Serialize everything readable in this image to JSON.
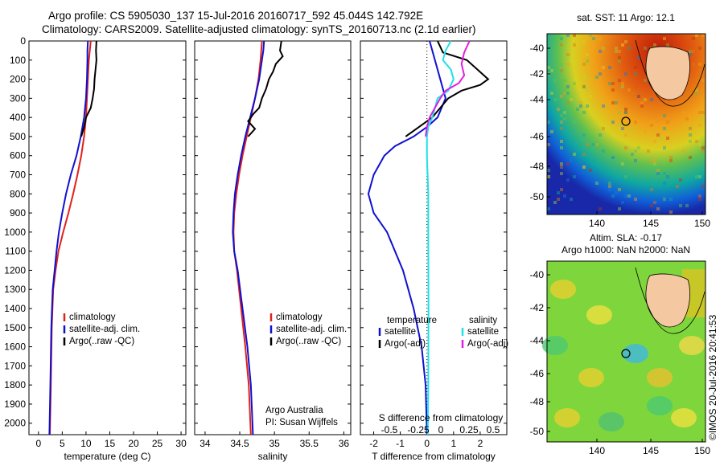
{
  "header": {
    "line1": "Argo profile: CS 5905030_137 15-Jul-2016 20160717_592 45.044S 142.792E",
    "line2": "Climatology: CARS2009. Satellite-adjusted climatology: synTS_20160713.nc (2.1d earlier)"
  },
  "depth_axis": {
    "ticks": [
      0,
      100,
      200,
      300,
      400,
      500,
      600,
      700,
      800,
      900,
      1000,
      1100,
      1200,
      1300,
      1400,
      1500,
      1600,
      1700,
      1800,
      1900,
      2000
    ],
    "range": [
      0,
      2060
    ]
  },
  "colors": {
    "climatology": "#e0201c",
    "satellite": "#1010d0",
    "argo": "#000000",
    "salinity_satellite": "#20e0e8",
    "salinity_argo": "#e020e0"
  },
  "chart_data": [
    {
      "type": "line",
      "xlabel": "temperature (deg C)",
      "xticks": [
        0,
        5,
        10,
        15,
        20,
        25,
        30
      ],
      "xlim": [
        -2,
        31
      ],
      "legend": [
        "climatology",
        "satellite-adj. clim.",
        "Argo(..raw -QC)"
      ],
      "series": [
        {
          "name": "climatology",
          "color": "#e0201c",
          "x": [
            11.0,
            10.8,
            10.6,
            10.4,
            10.2,
            10.0,
            9.6,
            9.0,
            8.2,
            7.3,
            6.3,
            5.2,
            4.2,
            3.6,
            3.1,
            2.8,
            2.6,
            2.4
          ],
          "y": [
            0,
            50,
            100,
            200,
            300,
            400,
            500,
            600,
            700,
            800,
            900,
            1000,
            1100,
            1200,
            1300,
            1500,
            1800,
            2060
          ]
        },
        {
          "name": "satellite-adj. clim.",
          "color": "#1010d0",
          "x": [
            10.4,
            10.3,
            10.3,
            10.2,
            10.0,
            9.6,
            8.9,
            8.0,
            6.8,
            5.8,
            5.0,
            4.3,
            3.8,
            3.4,
            3.0,
            2.7,
            2.5,
            2.3
          ],
          "y": [
            0,
            50,
            100,
            200,
            300,
            400,
            500,
            600,
            700,
            800,
            900,
            1000,
            1100,
            1200,
            1300,
            1500,
            1800,
            2060
          ]
        },
        {
          "name": "Argo(..raw -QC)",
          "color": "#000000",
          "x": [
            12.2,
            12.1,
            12.2,
            12.0,
            11.8,
            11.7,
            11.4,
            11.0,
            10.0,
            9.6,
            9.0
          ],
          "y": [
            0,
            50,
            100,
            150,
            200,
            250,
            300,
            350,
            400,
            450,
            500
          ]
        }
      ]
    },
    {
      "type": "line",
      "xlabel": "salinity",
      "xticks": [
        34,
        34.5,
        35,
        35.5,
        36
      ],
      "xlim": [
        33.85,
        36.1
      ],
      "legend": [
        "climatology",
        "satellite-adj. clim.",
        "Argo(..raw -QC)"
      ],
      "annotation": [
        "Argo Australia",
        "PI: Susan Wijffels"
      ],
      "series": [
        {
          "name": "climatology",
          "color": "#e0201c",
          "x": [
            34.82,
            34.81,
            34.8,
            34.77,
            34.72,
            34.66,
            34.6,
            34.54,
            34.49,
            34.45,
            34.42,
            34.41,
            34.42,
            34.46,
            34.52,
            34.58,
            34.63,
            34.66
          ],
          "y": [
            0,
            50,
            100,
            200,
            300,
            400,
            500,
            600,
            700,
            800,
            900,
            1000,
            1100,
            1200,
            1400,
            1600,
            1800,
            2060
          ]
        },
        {
          "name": "satellite-adj. clim.",
          "color": "#1010d0",
          "x": [
            34.85,
            34.84,
            34.82,
            34.78,
            34.72,
            34.65,
            34.58,
            34.52,
            34.47,
            34.43,
            34.41,
            34.4,
            34.42,
            34.47,
            34.54,
            34.61,
            34.66,
            34.69
          ],
          "y": [
            0,
            50,
            100,
            200,
            300,
            400,
            500,
            600,
            700,
            800,
            900,
            1000,
            1100,
            1200,
            1400,
            1600,
            1800,
            2060
          ]
        },
        {
          "name": "Argo(..raw -QC)",
          "color": "#000000",
          "x": [
            35.1,
            35.08,
            35.12,
            35.02,
            34.98,
            34.92,
            34.88,
            34.82,
            34.78,
            34.7,
            34.62,
            34.72,
            34.62
          ],
          "y": [
            0,
            50,
            80,
            120,
            160,
            200,
            250,
            300,
            350,
            380,
            420,
            460,
            500
          ]
        }
      ]
    },
    {
      "type": "line",
      "xlabel": "T difference from climatology",
      "top_label": "S difference from climatology",
      "xticks": [
        -2,
        -1,
        0,
        1,
        2
      ],
      "top_ticks": [
        "-0.5",
        "-0.25",
        "0",
        "0.25",
        "0.5"
      ],
      "xlim": [
        -2.5,
        3.0
      ],
      "legend_left_title": "temperature",
      "legend_right_title": "salinity",
      "legend_left": [
        "satellite",
        "Argo(-adj)"
      ],
      "legend_right": [
        "satellite",
        "Argo(-adj)"
      ],
      "series": [
        {
          "name": "satellite",
          "color": "#1010d0",
          "x": [
            0.1,
            0.3,
            0.5,
            0.7,
            0.4,
            0.0,
            -0.5,
            -1.2,
            -1.6,
            -2.0,
            -2.2,
            -2.0,
            -1.5,
            -0.9,
            -0.5,
            -0.2,
            -0.05,
            0.0
          ],
          "y": [
            0,
            100,
            200,
            300,
            400,
            450,
            500,
            550,
            600,
            700,
            800,
            900,
            1000,
            1200,
            1400,
            1600,
            1800,
            2060
          ]
        },
        {
          "name": "Argo(-adj)",
          "color": "#000000",
          "x": [
            0.4,
            0.6,
            1.5,
            1.9,
            2.3,
            2.0,
            1.3,
            0.8,
            0.5,
            0.2,
            -0.3,
            -0.8
          ],
          "y": [
            0,
            60,
            100,
            150,
            200,
            230,
            260,
            300,
            350,
            400,
            450,
            500
          ]
        },
        {
          "name": "satellite",
          "color": "#20e0e8",
          "x": [
            0.9,
            0.7,
            0.6,
            0.9,
            1.0,
            0.8,
            0.4,
            0.2,
            0.05,
            0.0,
            0.0,
            0.05,
            0.05,
            0.06,
            0.05,
            0.03
          ],
          "y": [
            0,
            50,
            100,
            150,
            200,
            260,
            300,
            400,
            450,
            500,
            600,
            800,
            1000,
            1400,
            1800,
            2060
          ]
        },
        {
          "name": "Argo(-adj)",
          "color": "#e020e0",
          "x": [
            1.6,
            1.4,
            1.3,
            1.4,
            1.2,
            0.7,
            0.5,
            0.3,
            0.1,
            0.0,
            -0.05
          ],
          "y": [
            0,
            60,
            120,
            180,
            220,
            260,
            300,
            350,
            400,
            450,
            500
          ]
        }
      ]
    }
  ],
  "maps": {
    "top": {
      "title": "sat. SST: 11 Argo: 12.1",
      "yticks": [
        "-40",
        "-42",
        "-44",
        "-46",
        "-48",
        "-50"
      ],
      "xticks": [
        "140",
        "145",
        "150"
      ]
    },
    "bottom": {
      "title1": "Altim. SLA: -0.17",
      "title2": "Argo h1000: NaN h2000: NaN",
      "yticks": [
        "-40",
        "-42",
        "-44",
        "-46",
        "-48",
        "-50"
      ],
      "xticks": [
        "140",
        "145",
        "150"
      ]
    },
    "credit": "©IMOS 20-Jul-2016 20:41:53"
  }
}
